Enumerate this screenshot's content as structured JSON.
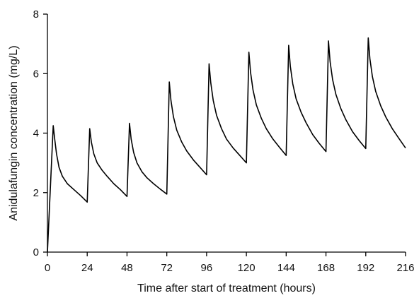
{
  "chart_data": {
    "type": "line",
    "title": "",
    "xlabel": "Time after start of treatment (hours)",
    "ylabel": "Anidulafungin concentration (mg/L)",
    "xlim": [
      0,
      216
    ],
    "ylim": [
      0,
      8
    ],
    "xticks": [
      0,
      24,
      48,
      72,
      96,
      120,
      144,
      168,
      192,
      216
    ],
    "yticks": [
      0,
      2,
      4,
      6,
      8
    ],
    "grid": false,
    "legend": "none",
    "line_color": "#000000",
    "series": [
      {
        "points": [
          [
            0,
            0
          ],
          [
            3.5,
            4.25
          ],
          [
            4.5,
            3.75
          ],
          [
            5.5,
            3.3
          ],
          [
            7,
            2.85
          ],
          [
            9,
            2.55
          ],
          [
            12,
            2.3
          ],
          [
            16,
            2.1
          ],
          [
            20,
            1.9
          ],
          [
            24,
            1.68
          ],
          [
            25.5,
            4.15
          ],
          [
            26.5,
            3.7
          ],
          [
            28,
            3.3
          ],
          [
            30,
            3.0
          ],
          [
            33,
            2.75
          ],
          [
            36,
            2.55
          ],
          [
            40,
            2.3
          ],
          [
            44,
            2.1
          ],
          [
            48,
            1.87
          ],
          [
            49.5,
            4.33
          ],
          [
            50.5,
            3.8
          ],
          [
            52,
            3.35
          ],
          [
            54,
            3.0
          ],
          [
            57,
            2.7
          ],
          [
            60,
            2.5
          ],
          [
            64,
            2.3
          ],
          [
            68,
            2.12
          ],
          [
            72,
            1.95
          ],
          [
            73.5,
            5.72
          ],
          [
            74.5,
            5.1
          ],
          [
            76,
            4.55
          ],
          [
            78,
            4.1
          ],
          [
            81,
            3.7
          ],
          [
            84,
            3.4
          ],
          [
            88,
            3.1
          ],
          [
            92,
            2.85
          ],
          [
            96,
            2.6
          ],
          [
            97.5,
            6.33
          ],
          [
            98.5,
            5.7
          ],
          [
            100,
            5.1
          ],
          [
            102,
            4.6
          ],
          [
            105,
            4.15
          ],
          [
            108,
            3.8
          ],
          [
            112,
            3.5
          ],
          [
            116,
            3.25
          ],
          [
            120,
            3.0
          ],
          [
            121.5,
            6.72
          ],
          [
            122.5,
            6.05
          ],
          [
            124,
            5.45
          ],
          [
            126,
            4.95
          ],
          [
            129,
            4.5
          ],
          [
            132,
            4.15
          ],
          [
            136,
            3.8
          ],
          [
            140,
            3.52
          ],
          [
            144,
            3.25
          ],
          [
            145.5,
            6.95
          ],
          [
            146.5,
            6.25
          ],
          [
            148,
            5.65
          ],
          [
            150,
            5.15
          ],
          [
            153,
            4.7
          ],
          [
            156,
            4.35
          ],
          [
            160,
            3.95
          ],
          [
            164,
            3.65
          ],
          [
            168,
            3.38
          ],
          [
            169.5,
            7.1
          ],
          [
            170.5,
            6.4
          ],
          [
            172,
            5.8
          ],
          [
            174,
            5.3
          ],
          [
            177,
            4.82
          ],
          [
            180,
            4.45
          ],
          [
            184,
            4.05
          ],
          [
            188,
            3.75
          ],
          [
            192,
            3.48
          ],
          [
            193.5,
            7.2
          ],
          [
            194.5,
            6.5
          ],
          [
            196,
            5.9
          ],
          [
            198,
            5.4
          ],
          [
            201,
            4.92
          ],
          [
            204,
            4.55
          ],
          [
            208,
            4.15
          ],
          [
            212,
            3.82
          ],
          [
            216,
            3.5
          ]
        ]
      }
    ]
  }
}
